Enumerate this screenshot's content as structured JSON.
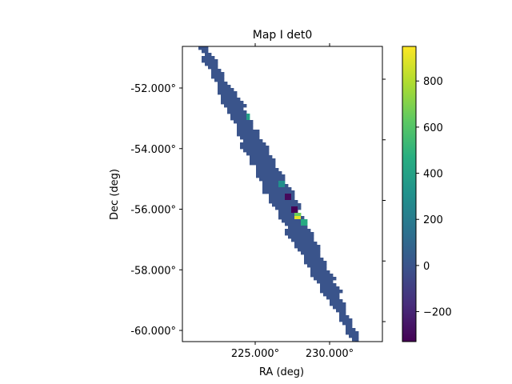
{
  "chart_data": {
    "type": "heatmap",
    "title": "Map I det0",
    "xlabel": "RA (deg)",
    "ylabel": "Dec (deg)",
    "x_ticks": [
      {
        "value": 225.0,
        "label": "225.000°"
      },
      {
        "value": 230.0,
        "label": "230.000°"
      }
    ],
    "y_ticks": [
      {
        "value": -52.0,
        "label": "-52.000°"
      },
      {
        "value": -54.0,
        "label": "-54.000°"
      },
      {
        "value": -56.0,
        "label": "-56.000°"
      },
      {
        "value": -58.0,
        "label": "-58.000°"
      },
      {
        "value": -60.0,
        "label": "-60.000°"
      }
    ],
    "colorbar": {
      "colormap": "viridis",
      "vmin": -330,
      "vmax": 950,
      "ticks": [
        {
          "value": -200,
          "label": "−200"
        },
        {
          "value": 0,
          "label": "0"
        },
        {
          "value": 200,
          "label": "200"
        },
        {
          "value": 400,
          "label": "400"
        },
        {
          "value": 600,
          "label": "600"
        },
        {
          "value": 800,
          "label": "800"
        }
      ]
    },
    "background_value": 0,
    "stripe": {
      "start": {
        "ra": 221.5,
        "dec": -50.65
      },
      "end": {
        "ra": 231.8,
        "dec": -60.35
      }
    },
    "hotspots": [
      {
        "ra": 227.9,
        "dec": -56.25,
        "value": 900
      },
      {
        "ra": 227.9,
        "dec": -56.1,
        "value": 650
      },
      {
        "ra": 228.3,
        "dec": -56.45,
        "value": 450
      },
      {
        "ra": 224.6,
        "dec": -53.0,
        "value": 380
      },
      {
        "ra": 226.7,
        "dec": -55.15,
        "value": 300
      },
      {
        "ra": 227.1,
        "dec": -55.55,
        "value": -300
      },
      {
        "ra": 227.6,
        "dec": -56.05,
        "value": -330
      }
    ]
  }
}
